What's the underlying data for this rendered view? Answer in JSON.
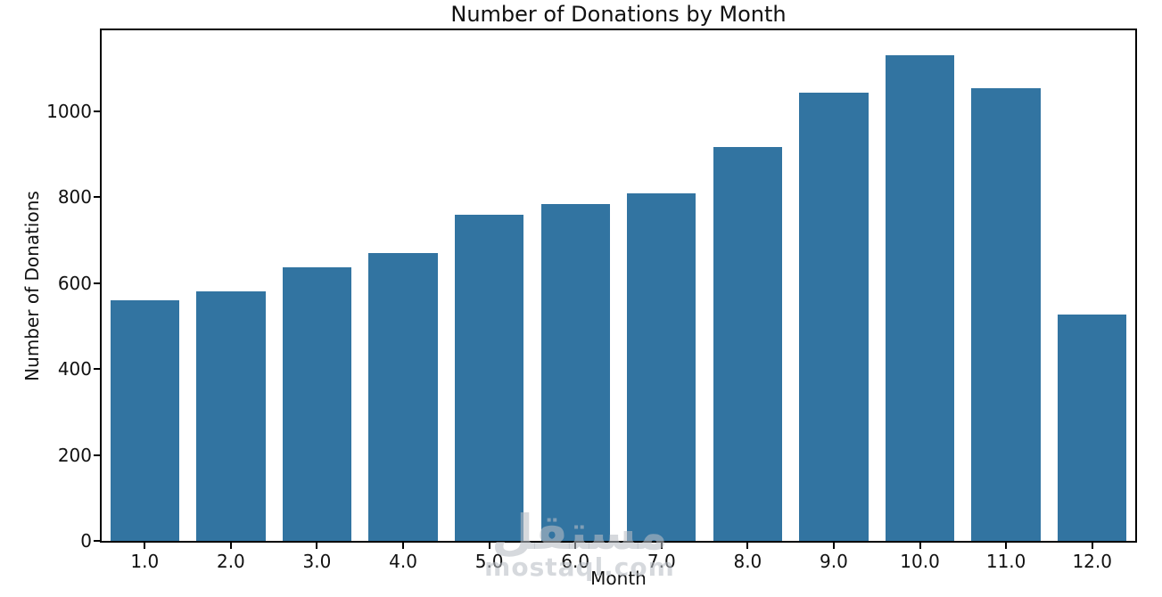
{
  "chart_data": {
    "type": "bar",
    "title": "Number of Donations by Month",
    "xlabel": "Month",
    "ylabel": "Number of Donations",
    "categories": [
      "1.0",
      "2.0",
      "3.0",
      "4.0",
      "5.0",
      "6.0",
      "7.0",
      "8.0",
      "9.0",
      "10.0",
      "11.0",
      "12.0"
    ],
    "values": [
      560,
      581,
      636,
      669,
      758,
      783,
      809,
      916,
      1043,
      1131,
      1054,
      526
    ],
    "yticks": [
      0,
      200,
      400,
      600,
      800,
      1000
    ],
    "ylim": [
      0,
      1188
    ],
    "bar_color": "#3274a1",
    "axis_color": "#000000",
    "text_color": "#111111",
    "grid": false,
    "legend_position": "none",
    "bar_width_fraction": 0.8
  },
  "watermark": {
    "logo_text": "مستقل",
    "site_text": "mostaql.com"
  }
}
